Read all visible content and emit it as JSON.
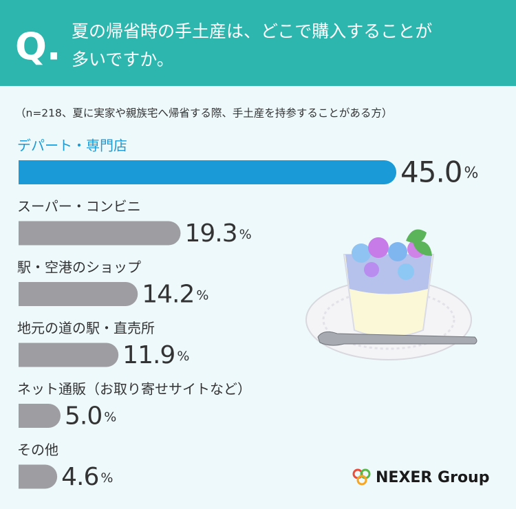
{
  "chart_data": {
    "type": "bar",
    "q_mark": "Q.",
    "title_lines": [
      "夏の帰省時の手土産は、どこで購入することが",
      "多いですか。"
    ],
    "subtitle": "（n=218、夏に実家や親族宅へ帰省する際、手土産を持参することがある方）",
    "categories": [
      "デパート・専門店",
      "スーパー・コンビニ",
      "駅・空港のショップ",
      "地元の道の駅・直売所",
      "ネット通販（お取り寄せサイトなど）",
      "その他"
    ],
    "values": [
      45.0,
      19.3,
      14.2,
      11.9,
      5.0,
      4.6
    ],
    "value_labels": [
      "45.0%",
      "19.3%",
      "14.2%",
      "11.9%",
      "5.0%",
      "4.6%"
    ],
    "colors": [
      "#1a9ad6",
      "#9d9da2",
      "#9d9da2",
      "#9d9da2",
      "#9d9da2",
      "#9d9da2"
    ],
    "brand": "NEXER Group"
  }
}
